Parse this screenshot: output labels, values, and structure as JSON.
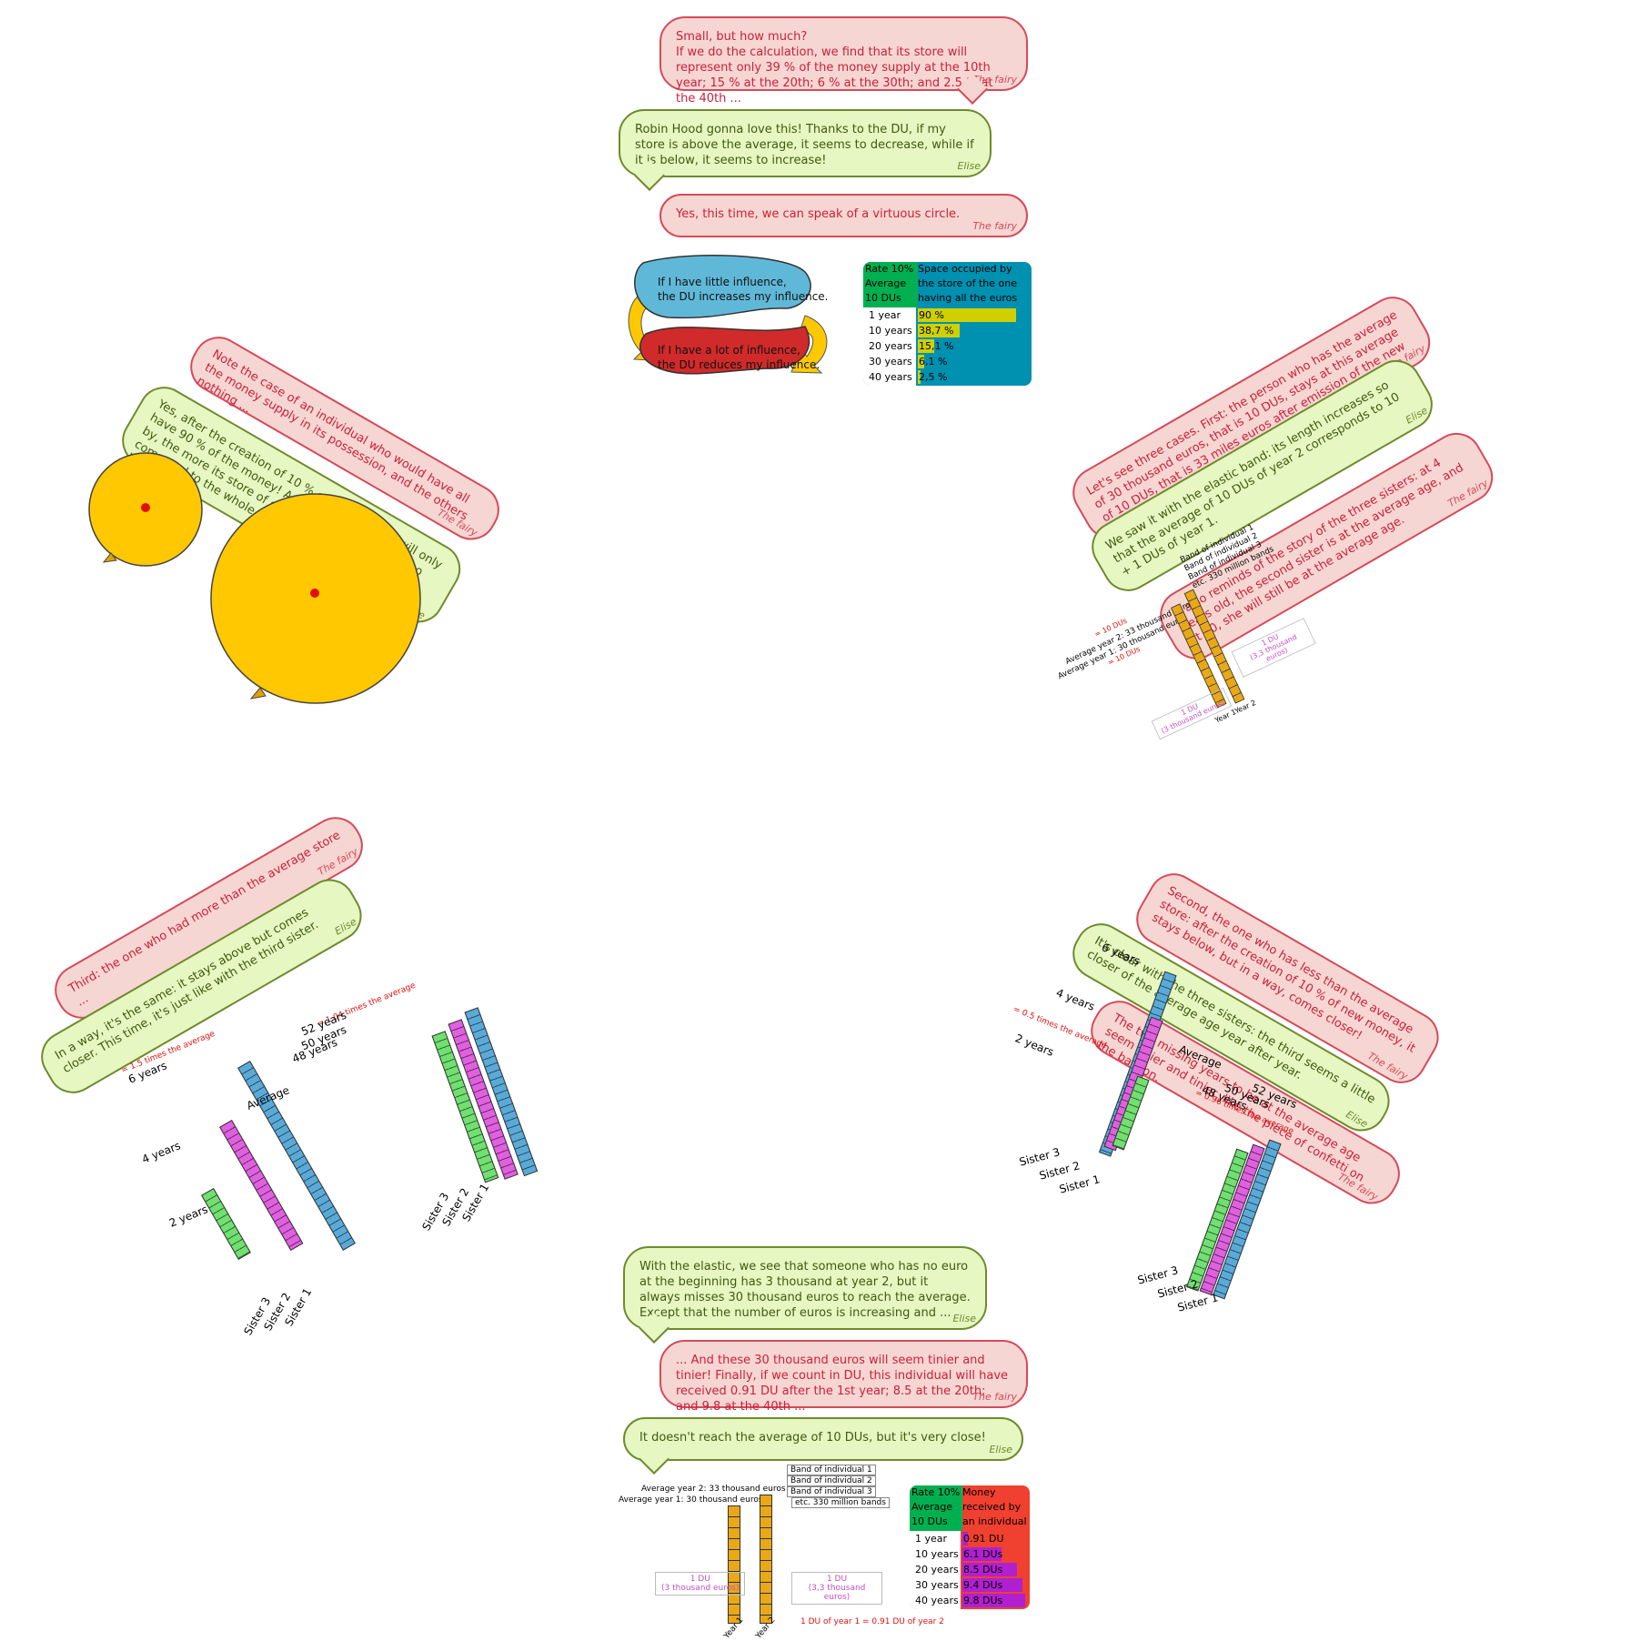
{
  "speakers": {
    "fairy": "The fairy",
    "elise": "Elise"
  },
  "top": {
    "b1": "Small, but how much?\nIf we do the calculation, we find that its store will represent only 39 % of the money supply at the 10th year; 15 % at the 20th; 6 % at the 30th; and 2.5 % at the 40th ...",
    "b2": "Robin Hood gonna love this! Thanks to the DU, if my store is above the average, it seems to decrease, while if it is below, it seems to increase!",
    "b3": "Yes, this time, we can speak of a virtuous circle.",
    "cycle_top": "If I have little influence,\nthe DU increases my influence.",
    "cycle_bottom": "If I have a lot of influence,\nthe DU reduces my influence.",
    "table": {
      "head_left": "Rate 10%\nAverage\n10 DUs",
      "head_right": "Space occupied by\nthe store of the one\nhaving all the euros",
      "rows": [
        {
          "label": "1 year",
          "value": "90 %",
          "pct": 90
        },
        {
          "label": "10 years",
          "value": "38,7 %",
          "pct": 38.7
        },
        {
          "label": "20 years",
          "value": "15,1 %",
          "pct": 15.1
        },
        {
          "label": "30 years",
          "value": "6,1 %",
          "pct": 6.1
        },
        {
          "label": "40 years",
          "value": "2,5 %",
          "pct": 2.5
        }
      ]
    }
  },
  "left_top": {
    "b1": "Note the case of an individual who would have all the money supply in its possession, and the others nothing ...",
    "b2": "Yes, after the creation of 10 % of new euros, it will only have 90 % of the money! And the more years will go by, the more its store of euros will seem small compared to the whole, as the piece of confetti on the balloon."
  },
  "right_top": {
    "b1": "Let's see three cases. First: the person who has the average of 30 thousand euros, that is 10 DUs, stays at this average of 10 DUs, that is 33 miles euros after emission of the new money.",
    "b2": "We saw it with the elastic band: its length increases so that the average of 10 DUs of year 2 corresponds to 10 + 1 DUs of year 1.",
    "b3": "It also reminds of the story of the three sisters: at 4 years old, the second sister is at the average age, and at 50, she will still be at the average age.",
    "bands": [
      "Band of individual 1",
      "Band of individual 2",
      "Band of individual 3",
      "etc. 330 million bands"
    ],
    "eq10a": "= 10 DUs",
    "avg2": "Average year 2: 33 thousand euros",
    "avg1": "Average year 1: 30 thousand euros",
    "eq10b": "= 10 DUs",
    "du1": "1 DU\n(3 thousand euros)",
    "du2": "1 DU\n(3,3 thousand euros)",
    "year1": "Year 1",
    "year2": "Year 2"
  },
  "left_bottom": {
    "b1": "Third: the one who had more than the average store ...",
    "b2": "In a way, it's the same: it stays above but comes closer. This time, it's just like with the third sister.",
    "times15": "= 1.5 times the average",
    "times104": "= 1.04 times the average",
    "y6": "6 years",
    "y4": "4 years",
    "y2": "2 years",
    "y52": "52 years",
    "y50": "50 years",
    "y48": "48 years",
    "average": "Average",
    "s1": "Sister 1",
    "s2": "Sister 2",
    "s3": "Sister 3"
  },
  "right_bottom": {
    "b1": "Second, the one who has less than the average store: after the creation of 10 % of new money, it stays below, but in a way, comes closer!",
    "b2": "It's clear with the three sisters: the third seems a little closer of the average age year after year.",
    "b3": "The two missing years to be at the average age seem tinier and tinier, like the piece of confetti on the balloon.",
    "times05": "= 0.5 times the average",
    "times096": "= 0.96 times the average",
    "y6": "6 years",
    "y4": "4 years",
    "y2": "2 years",
    "y52": "52 years",
    "y50": "50 years",
    "y48": "48 years",
    "average": "Average",
    "s1": "Sister 1",
    "s2": "Sister 2",
    "s3": "Sister 3"
  },
  "bottom": {
    "b1": "With the elastic, we see that someone who has no euro at the beginning has 3 thousand at year 2, but it always misses 30 thousand euros to reach the average. Except that the number of euros is increasing and ...",
    "b2": "... And these 30 thousand euros will seem tinier and tinier! Finally, if we count in DU, this individual will have received 0.91 DU after the 1st year; 8.5 at the 20th; and 9.8 at the 40th ...",
    "b3": "It doesn't reach the average of 10 DUs, but it's very close!",
    "bands": [
      "Band of individual 1",
      "Band of individual 2",
      "Band of individual 3",
      "etc. 330 million bands"
    ],
    "avg2": "Average year 2: 33 thousand euros",
    "avg1": "Average year 1: 30 thousand euros",
    "du1": "1 DU\n(3 thousand euros)",
    "du2": "1 DU\n(3,3 thousand euros)",
    "year1": "Year 1",
    "year2": "Year 2",
    "equiv": "1 DU of year 1 = 0.91 DU of year 2",
    "table": {
      "head_left": "Rate 10%\nAverage\n10 DUs",
      "head_right": "Money\nreceived by\nan individual",
      "rows": [
        {
          "label": "1 year",
          "value": "0.91 DU",
          "du": 0.91
        },
        {
          "label": "10 years",
          "value": "6.1 DUs",
          "du": 6.1
        },
        {
          "label": "20 years",
          "value": "8.5 DUs",
          "du": 8.5
        },
        {
          "label": "30 years",
          "value": "9.4 DUs",
          "du": 9.4
        },
        {
          "label": "40 years",
          "value": "9.8 DUs",
          "du": 9.8
        }
      ]
    }
  },
  "colors": {
    "fairy_fill": "#f6d6d2",
    "fairy_border": "#d64a5a",
    "elise_fill": "#e6f7c2",
    "elise_border": "#6f8a2e",
    "balloon": "#ffc800",
    "confetti": "#e01010",
    "sister1": "#5aaad8",
    "sister2": "#e060e0",
    "sister3": "#70e070",
    "band": "#e8a818",
    "table_green": "#00b050",
    "table_teal": "#0090b0",
    "table_red": "#f04030",
    "bar_yellow": "#d0d000",
    "bar_purple": "#b020d0"
  }
}
